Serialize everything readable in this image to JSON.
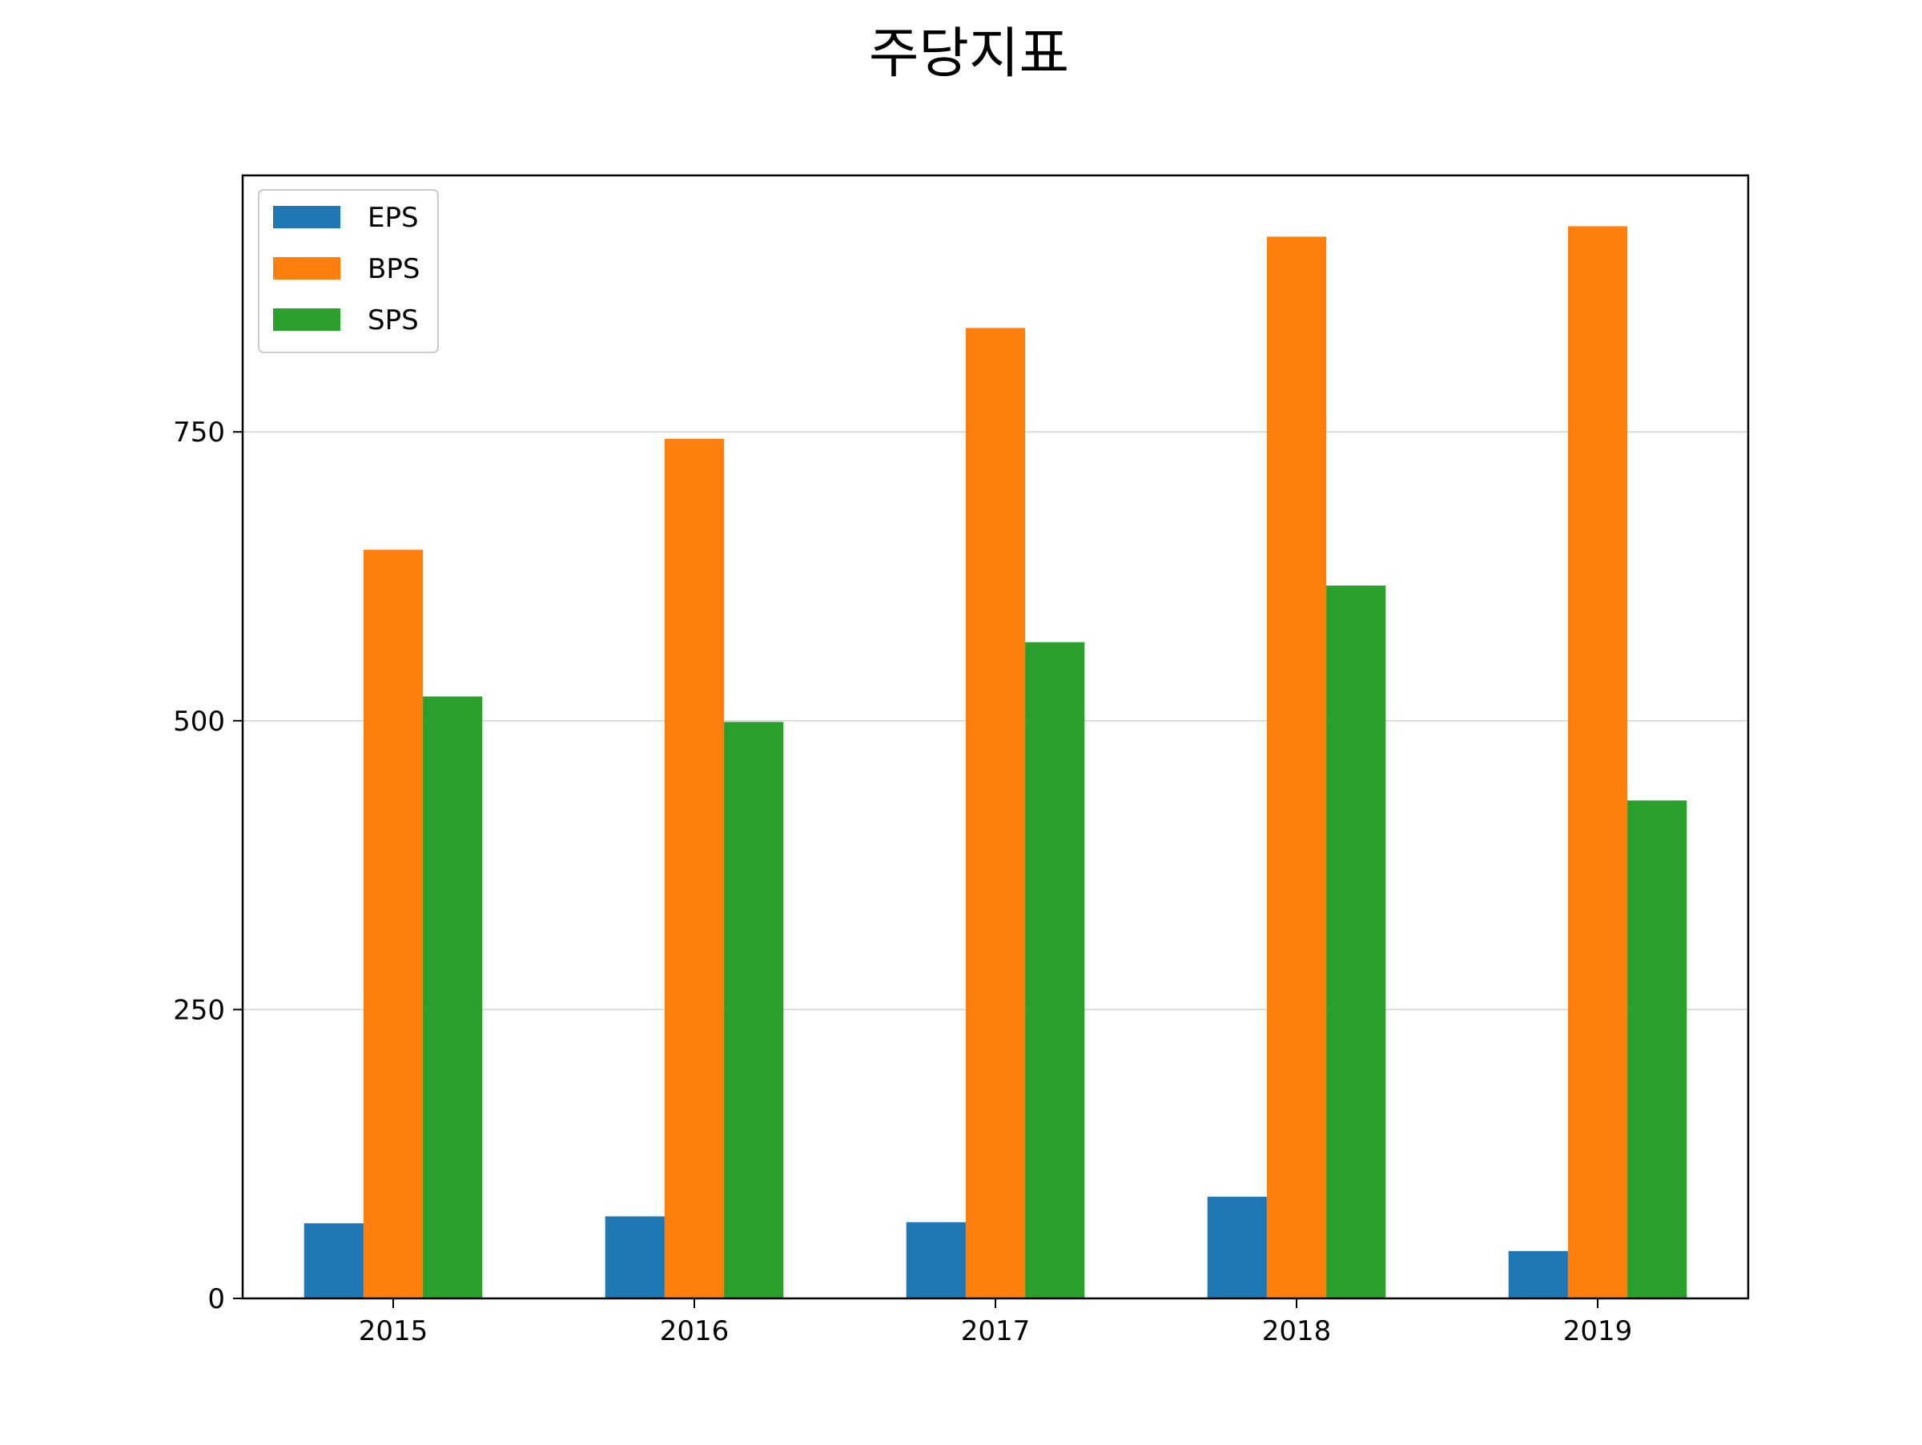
{
  "chart_data": {
    "type": "bar",
    "title": "주당지표",
    "xlabel": "",
    "ylabel": "",
    "categories": [
      "2015",
      "2016",
      "2017",
      "2018",
      "2019"
    ],
    "series": [
      {
        "name": "EPS",
        "values": [
          65,
          71,
          66,
          88,
          41
        ],
        "color": "#1f77b4"
      },
      {
        "name": "BPS",
        "values": [
          648,
          744,
          840,
          919,
          928
        ],
        "color": "#ff7f0e"
      },
      {
        "name": "SPS",
        "values": [
          521,
          499,
          568,
          617,
          431
        ],
        "color": "#2ca02c"
      }
    ],
    "yticks": [
      0,
      250,
      500,
      750
    ],
    "ylim": [
      0,
      972
    ],
    "grid": "y",
    "legend_position": "top-left"
  }
}
